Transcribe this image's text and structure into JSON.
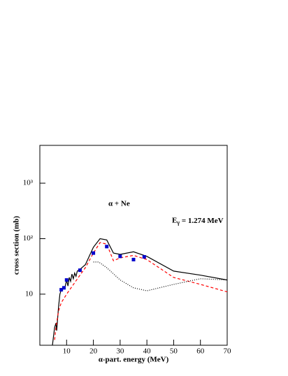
{
  "chart_data": {
    "type": "line",
    "annotations": [
      "α + Ne",
      "E<sub>γ</sub> = 1.274 MeV"
    ],
    "xlabel": "α-part. energy (MeV)",
    "ylabel": "cross section (mb)",
    "xlim": [
      0,
      70
    ],
    "xticks": [
      10,
      20,
      30,
      40,
      50,
      60,
      70
    ],
    "ylim": [
      1.2,
      4800
    ],
    "log_y": true,
    "yticks": [
      {
        "value": 10,
        "label": "10"
      },
      {
        "value": 100,
        "label": "10²"
      },
      {
        "value": 1000,
        "label": "10³"
      }
    ],
    "series": [
      {
        "color": "#000000",
        "style": "solid",
        "marker": "none",
        "x": [
          4.7,
          5.5,
          6,
          6.3,
          7,
          7.5,
          8,
          8.5,
          9,
          9.5,
          10,
          10.5,
          11,
          11.5,
          12,
          12.5,
          13,
          13.5,
          14,
          15,
          17,
          20,
          22.5,
          25,
          27.5,
          30,
          35,
          40,
          50,
          60,
          70
        ],
        "values": [
          1.2,
          2.5,
          3,
          2.2,
          6,
          10,
          12,
          13,
          12.5,
          14,
          18,
          14,
          20,
          17,
          23,
          19,
          24,
          21,
          26,
          28,
          34,
          70,
          100,
          95,
          55,
          52,
          58,
          48,
          26,
          22,
          18
        ]
      },
      {
        "color": "#ff0000",
        "style": "dashed",
        "marker": "none",
        "x": [
          5.5,
          6,
          7,
          8,
          10,
          15,
          17,
          20,
          22.5,
          25,
          27.5,
          30,
          35,
          40,
          50,
          60,
          70
        ],
        "values": [
          1.5,
          2.5,
          5,
          7,
          10,
          22,
          30,
          55,
          85,
          80,
          40,
          45,
          50,
          42,
          20,
          15,
          11
        ]
      },
      {
        "color": "#000000",
        "style": "dotted",
        "marker": "none",
        "x": [
          20,
          22,
          25,
          30,
          35,
          40,
          50,
          60,
          70
        ],
        "values": [
          38,
          38,
          30,
          18,
          13,
          11.5,
          15,
          19,
          18
        ]
      },
      {
        "color": "#0000cc",
        "style": "none",
        "marker": "square",
        "x": [
          8,
          9,
          10,
          15,
          20,
          25,
          30,
          35,
          39
        ],
        "values": [
          12,
          13,
          18,
          27,
          55,
          72,
          48,
          42,
          47
        ]
      }
    ]
  }
}
